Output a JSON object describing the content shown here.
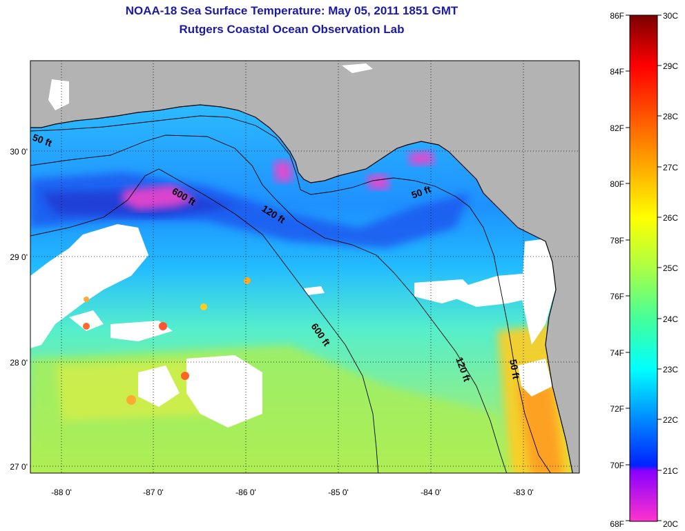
{
  "header": {
    "title_line1": "NOAA-18 Sea Surface Temperature:  May 05, 2011 1851 GMT",
    "title_line2": "Rutgers Coastal Ocean Observation Lab"
  },
  "axes": {
    "lon_ticks": [
      "-88 0'",
      "-87 0'",
      "-86 0'",
      "-85 0'",
      "-84 0'",
      "-83 0'"
    ],
    "lat_ticks": [
      "30 0'",
      "29 0'",
      "28 0'",
      "27 0'"
    ]
  },
  "contours": {
    "depth_50": "50 ft",
    "depth_120": "120 ft",
    "depth_600": "600 ft"
  },
  "colorbar": {
    "fahrenheit_labels": [
      "86F",
      "84F",
      "82F",
      "80F",
      "78F",
      "76F",
      "74F",
      "72F",
      "70F",
      "68F"
    ],
    "celsius_labels": [
      "30C",
      "29C",
      "28C",
      "27C",
      "26C",
      "25C",
      "24C",
      "23C",
      "22C",
      "21C",
      "20C"
    ],
    "colors": [
      "#ff33cc",
      "#8800ff",
      "#0022ff",
      "#00aaff",
      "#00ffff",
      "#55ff88",
      "#ffff00",
      "#ffaa00",
      "#ff4400",
      "#ff0000",
      "#7a0000"
    ]
  },
  "colors": {
    "land": "#b3b3b3",
    "cloud": "#ffffff",
    "title": "#1a1aa6"
  }
}
